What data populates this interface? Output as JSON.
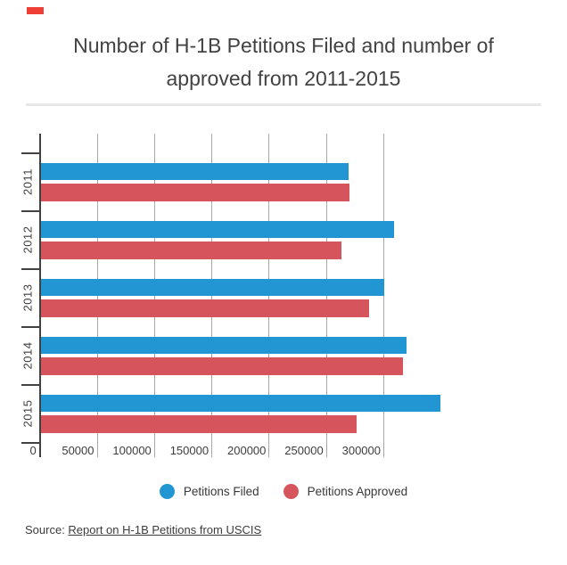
{
  "title": {
    "lines": [
      "Number of H-1B Petitions Filed and number of",
      "approved from 2011-2015"
    ]
  },
  "chart_data": {
    "type": "bar",
    "orientation": "horizontal",
    "title": "Number of H-1B Petitions Filed and number of approved from 2011-2015",
    "categories": [
      "2011",
      "2012",
      "2013",
      "2014",
      "2015"
    ],
    "series": [
      {
        "name": "Petitions Filed",
        "color": "#2196d3",
        "values": [
          268412,
          308220,
          299478,
          318824,
          348669
        ]
      },
      {
        "name": "Petitions Approved",
        "color": "#d6555c",
        "values": [
          269653,
          262569,
          286773,
          315857,
          275317
        ]
      }
    ],
    "x_ticks": [
      0,
      50000,
      100000,
      150000,
      200000,
      250000,
      300000
    ],
    "x_tick_labels": [
      "0",
      "50000",
      "100000",
      "150000",
      "200000",
      "250000",
      "300000"
    ],
    "xlim": [
      0,
      355000
    ],
    "grid": true,
    "legend_position": "bottom"
  },
  "legend": {
    "items": [
      {
        "label": "Petitions Filed",
        "color": "#2196d3"
      },
      {
        "label": "Petitions Approved",
        "color": "#d6555c"
      }
    ]
  },
  "source": {
    "prefix": "Source: ",
    "link_text": "Report on H-1B Petitions from USCIS"
  },
  "colors": {
    "bar_blue": "#2196d3",
    "bar_red": "#d6555c",
    "gridline": "#a8a8a8",
    "axis": "#424242",
    "divider": "#e7e7e7",
    "top_mark": "#ee3e36",
    "text": "#3d3d3d"
  }
}
